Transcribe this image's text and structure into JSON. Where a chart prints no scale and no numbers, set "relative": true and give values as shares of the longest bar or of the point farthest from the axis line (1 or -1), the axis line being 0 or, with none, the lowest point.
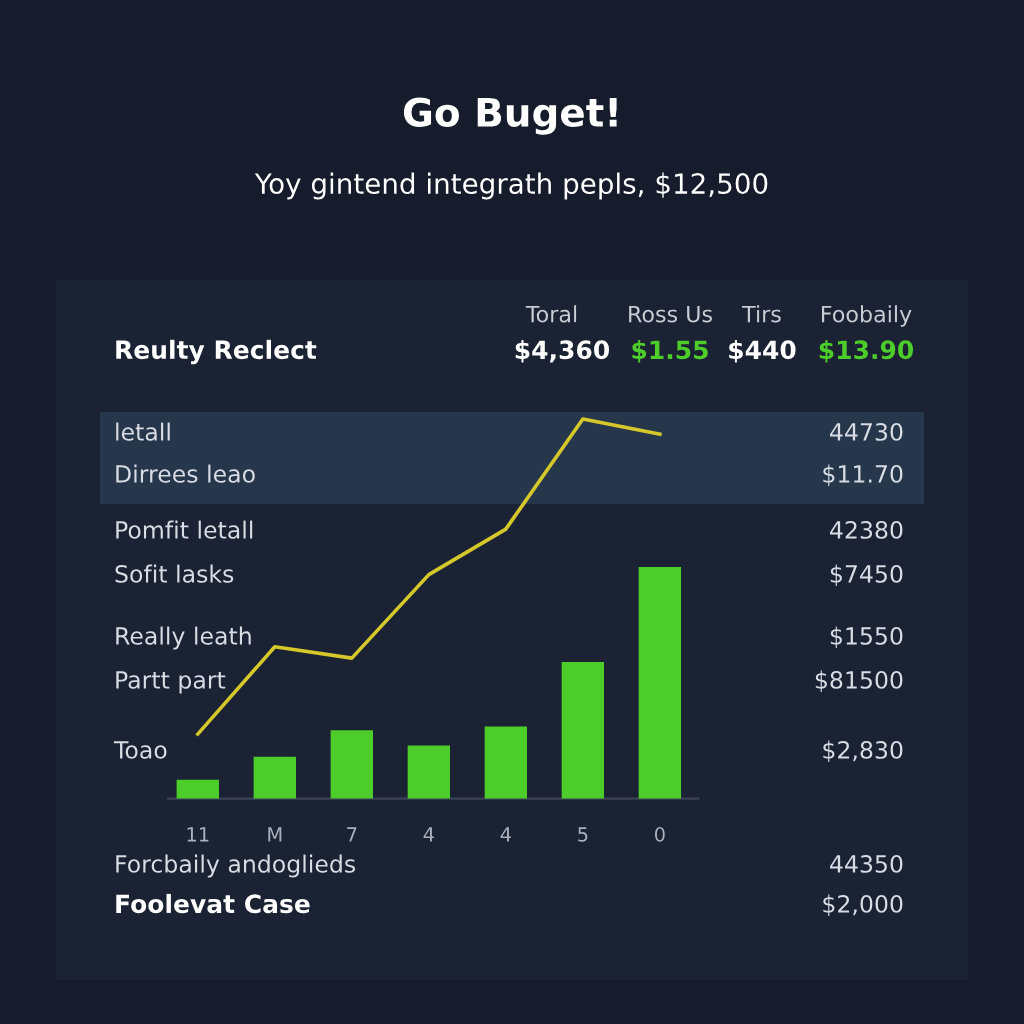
{
  "chart_data": {
    "type": "bar",
    "title": "Go Buget!",
    "subtitle": "Yoy gintend integrath pepls, $12,500",
    "relative": true,
    "categories": [
      "11",
      "M",
      "7",
      "4",
      "4",
      "5",
      "0"
    ],
    "series": [
      {
        "color": "#4ccd2a",
        "values": [
          0.05,
          0.11,
          0.18,
          0.14,
          0.19,
          0.36,
          0.61
        ]
      },
      {
        "type": "line",
        "color": "#d4c82a",
        "values": [
          0.17,
          0.4,
          0.37,
          0.59,
          0.71,
          1.0,
          0.96
        ]
      }
    ],
    "annotations": [
      "Reulty Reclect",
      "Toral",
      "Ross Us",
      "Tirs",
      "Foobaily",
      "$4,360",
      "$1.55",
      "$440",
      "$13.90",
      "letall",
      "44730",
      "Dirrees leao",
      "$11.70",
      "Pomfit letall",
      "42380",
      "Sofit lasks",
      "$7450",
      "Really leath",
      "$1550",
      "Partt part",
      "$81500",
      "Toao",
      "$2,830",
      "Forcbaily andoglieds",
      "44350",
      "Foolevat Case",
      "$2,000"
    ],
    "grid": false,
    "legend": false,
    "marker": "none",
    "line_style": "solid"
  }
}
